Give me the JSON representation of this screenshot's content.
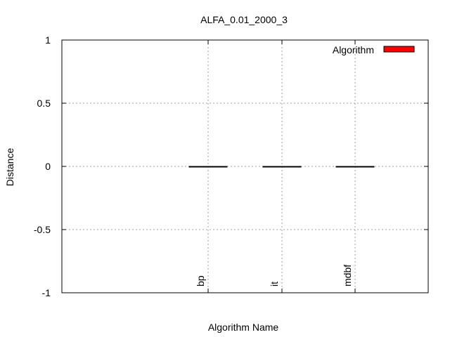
{
  "chart_data": {
    "type": "bar",
    "title": "ALFA_0.01_2000_3",
    "xlabel": "Algorithm Name",
    "ylabel": "Distance",
    "categories": [
      "bp",
      "it",
      "mdbf"
    ],
    "series": [
      {
        "name": "Algorithm",
        "values": [
          0,
          0,
          0
        ]
      }
    ],
    "ylim": [
      -1,
      1
    ],
    "yticks": [
      1,
      0.5,
      0,
      -0.5,
      -1
    ],
    "ytick_labels": [
      "1",
      "0.5",
      "0",
      "-0.5",
      "-1"
    ],
    "grid": true,
    "legend": "top-right",
    "colors": {
      "series": "#ff0000",
      "outline": "#000000"
    }
  }
}
